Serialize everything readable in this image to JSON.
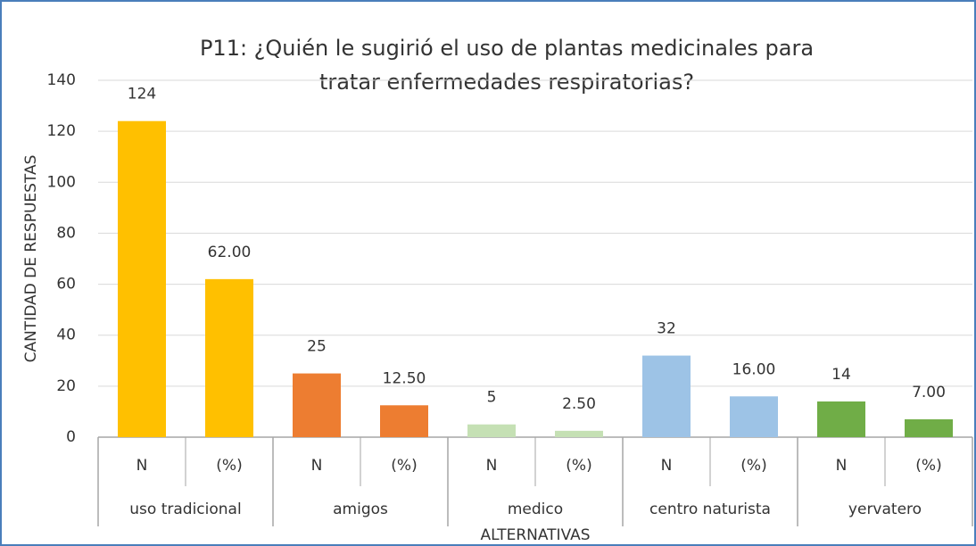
{
  "chart_data": {
    "type": "bar",
    "title": [
      "P11:  ¿Quién le sugirió el uso de plantas medicinales para",
      "tratar enfermedades respiratorias?"
    ],
    "y_label": "CANTIDAD DE RESPUESTAS",
    "x_label": "ALTERNATIVAS",
    "ylim": [
      0,
      140
    ],
    "yticks": [
      0,
      20,
      40,
      60,
      80,
      100,
      120,
      140
    ],
    "grid": true,
    "groups": [
      {
        "name": "uso tradicional",
        "color": "#ffc000",
        "categories": [
          "N",
          "(%)"
        ],
        "values": [
          124,
          62
        ],
        "value_labels": [
          "124",
          "62.00"
        ]
      },
      {
        "name": "amigos",
        "color": "#ed7d31",
        "categories": [
          "N",
          "(%)"
        ],
        "values": [
          25,
          12.5
        ],
        "value_labels": [
          "25",
          "12.50"
        ]
      },
      {
        "name": "medico",
        "color": "#c5e0b4",
        "categories": [
          "N",
          "(%)"
        ],
        "values": [
          5,
          2.5
        ],
        "value_labels": [
          "5",
          "2.50"
        ]
      },
      {
        "name": "centro naturista",
        "color": "#9dc3e6",
        "categories": [
          "N",
          "(%)"
        ],
        "values": [
          32,
          16
        ],
        "value_labels": [
          "32",
          "16.00"
        ]
      },
      {
        "name": "yervatero",
        "color": "#70ad47",
        "categories": [
          "N",
          "(%)"
        ],
        "values": [
          14,
          7
        ],
        "value_labels": [
          "14",
          "7.00"
        ]
      }
    ]
  }
}
